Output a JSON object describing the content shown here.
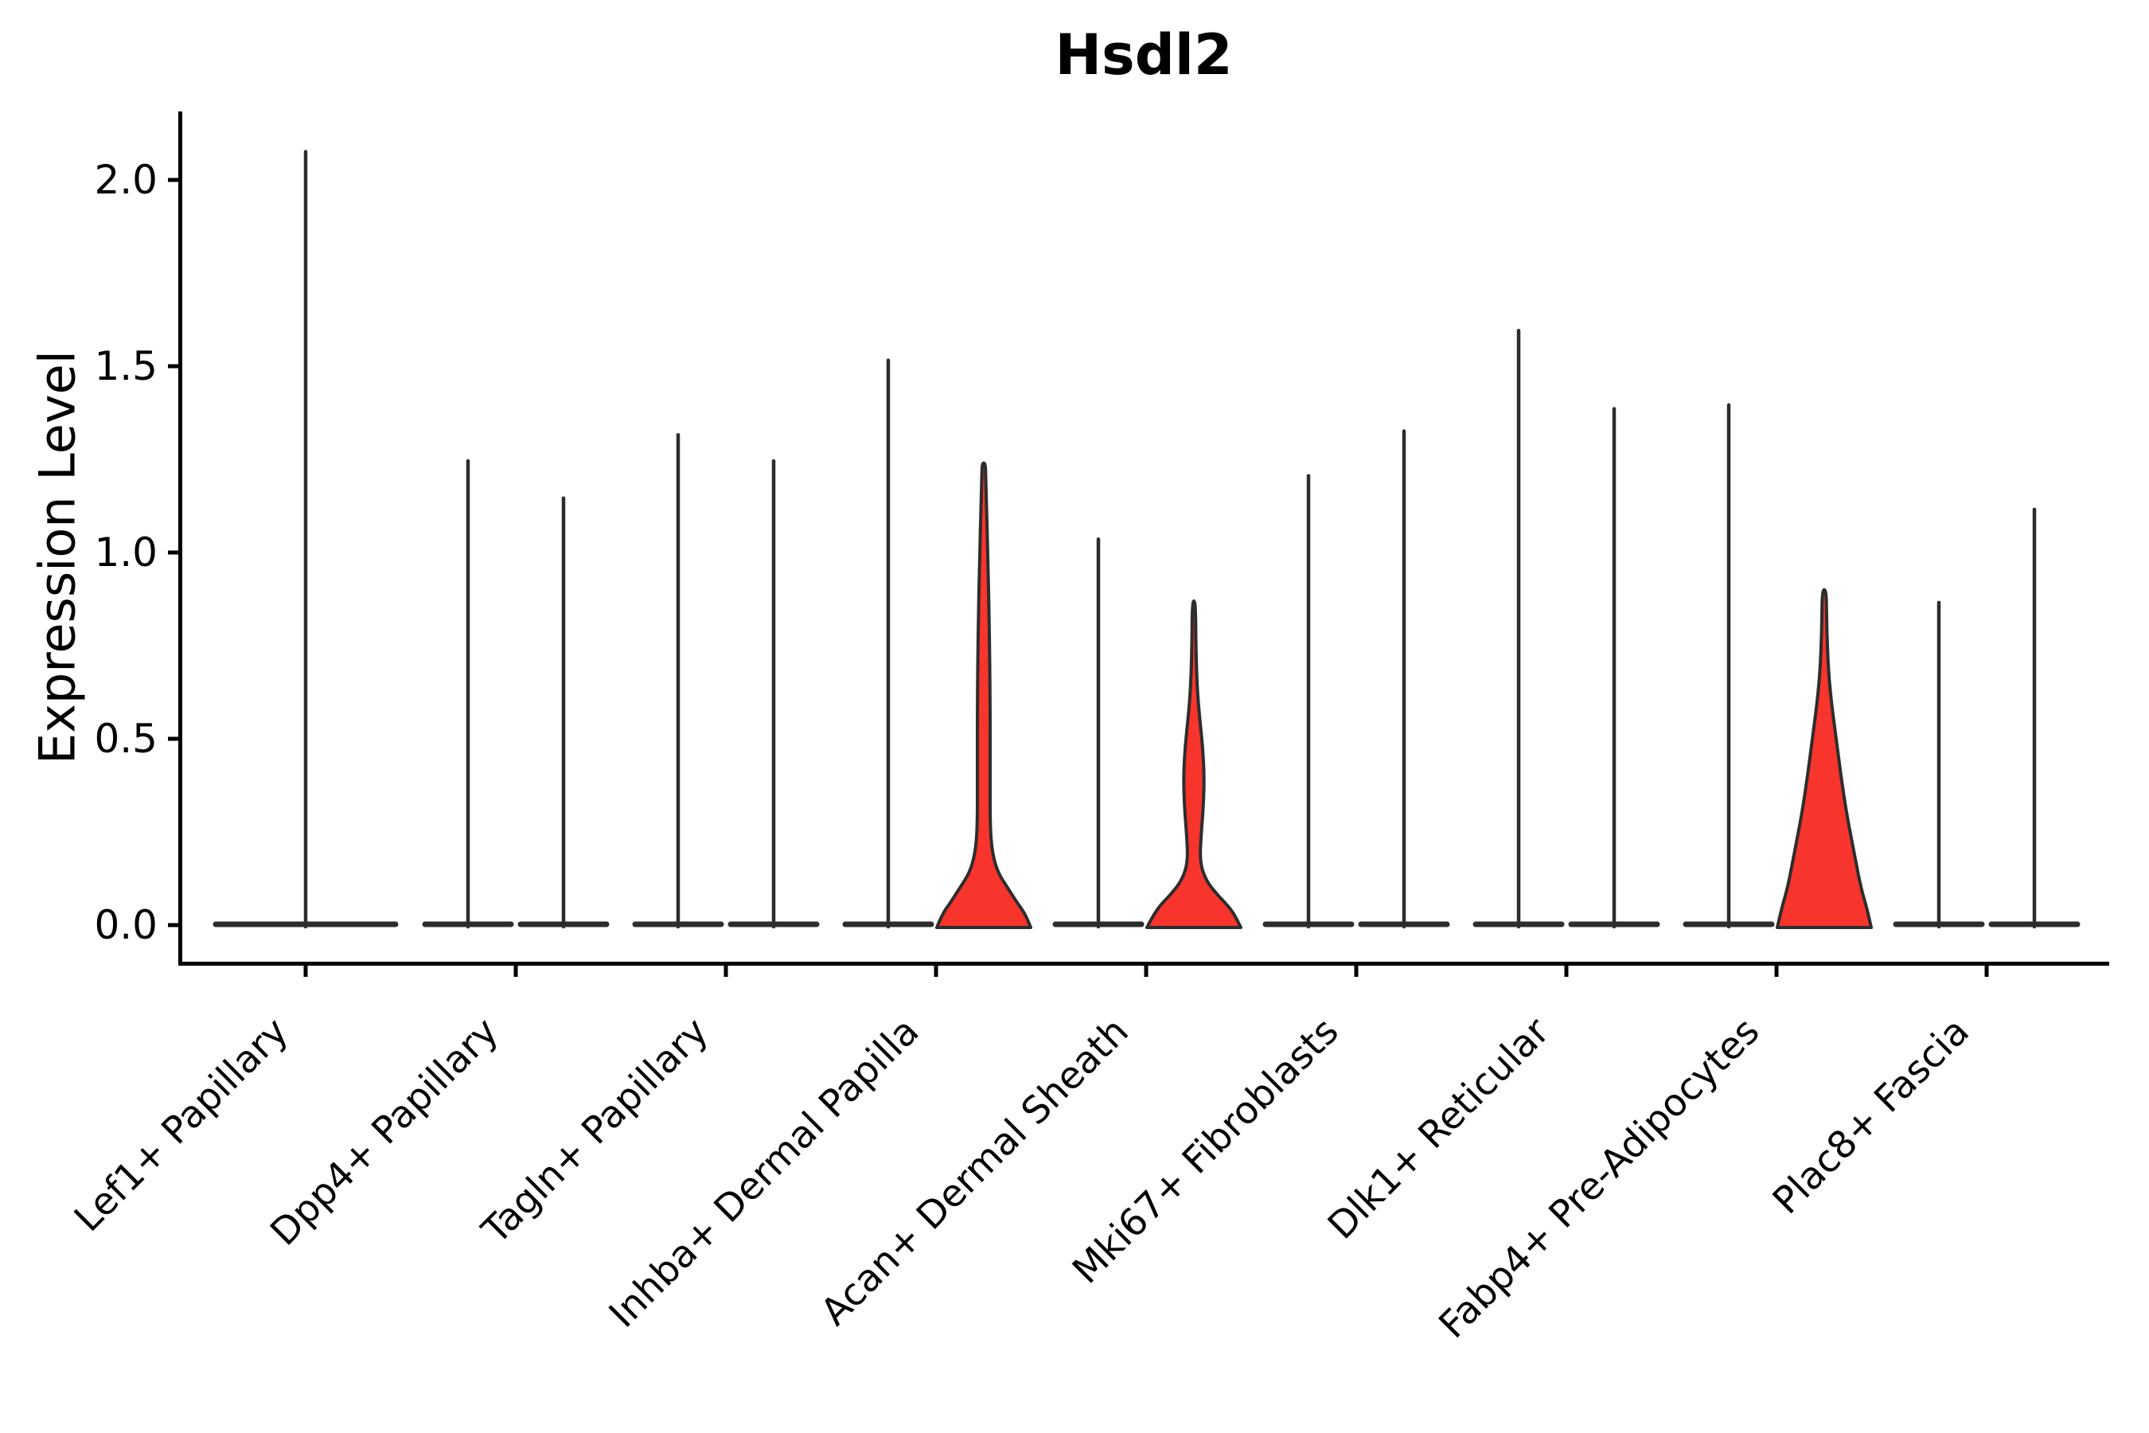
{
  "title": "Hsdl2",
  "chart_data": {
    "type": "violin",
    "title": "Hsdl2",
    "xlabel": "",
    "ylabel": "Expression Level",
    "ylim": [
      -0.1,
      2.18
    ],
    "yticks": [
      "0.0",
      "0.5",
      "1.0",
      "1.5",
      "2.0"
    ],
    "ytick_values": [
      0.0,
      0.5,
      1.0,
      1.5,
      2.0
    ],
    "grid": false,
    "legend": null,
    "line_color": "#2d2d2d",
    "fill_color": "#f8352c",
    "categories": [
      "Lef1+ Papillary",
      "Dpp4+ Papillary",
      "Tagln+ Papillary",
      "Inhba+ Dermal Papilla",
      "Acan+ Dermal Sheath",
      "Mki67+ Fibroblasts",
      "Dlk1+ Reticular",
      "Fabp4+ Pre-Adipocytes",
      "Plac8+ Fascia"
    ],
    "violins": [
      {
        "category_index": 0,
        "category": "Lef1+ Papillary",
        "slot": "full",
        "max": 2.08,
        "filled": false
      },
      {
        "category_index": 1,
        "category": "Dpp4+ Papillary",
        "slot": "left",
        "max": 1.25,
        "filled": false
      },
      {
        "category_index": 1,
        "category": "Dpp4+ Papillary",
        "slot": "right",
        "max": 1.15,
        "filled": false
      },
      {
        "category_index": 2,
        "category": "Tagln+ Papillary",
        "slot": "left",
        "max": 1.32,
        "filled": false
      },
      {
        "category_index": 2,
        "category": "Tagln+ Papillary",
        "slot": "right",
        "max": 1.25,
        "filled": false
      },
      {
        "category_index": 3,
        "category": "Inhba+ Dermal Papilla",
        "slot": "left",
        "max": 1.52,
        "filled": false
      },
      {
        "category_index": 3,
        "category": "Inhba+ Dermal Papilla",
        "slot": "right",
        "max": 1.24,
        "filled": true,
        "profile": [
          [
            0,
            59
          ],
          [
            0.03,
            52
          ],
          [
            0.06,
            42
          ],
          [
            0.1,
            30
          ],
          [
            0.14,
            18
          ],
          [
            0.19,
            11
          ],
          [
            0.26,
            8
          ],
          [
            0.4,
            8
          ],
          [
            0.6,
            8
          ],
          [
            0.8,
            7
          ],
          [
            1.0,
            5
          ],
          [
            1.12,
            3.5
          ],
          [
            1.2,
            2.5
          ],
          [
            1.24,
            2
          ]
        ]
      },
      {
        "category_index": 4,
        "category": "Acan+ Dermal Sheath",
        "slot": "left",
        "max": 1.04,
        "filled": false
      },
      {
        "category_index": 4,
        "category": "Acan+ Dermal Sheath",
        "slot": "right",
        "max": 0.87,
        "filled": true,
        "profile": [
          [
            0,
            59
          ],
          [
            0.04,
            48
          ],
          [
            0.08,
            30
          ],
          [
            0.12,
            15
          ],
          [
            0.17,
            7.5
          ],
          [
            0.24,
            9
          ],
          [
            0.32,
            12
          ],
          [
            0.4,
            13
          ],
          [
            0.48,
            11
          ],
          [
            0.56,
            7
          ],
          [
            0.64,
            4
          ],
          [
            0.75,
            2.5
          ],
          [
            0.87,
            2
          ]
        ]
      },
      {
        "category_index": 5,
        "category": "Mki67+ Fibroblasts",
        "slot": "left",
        "max": 1.21,
        "filled": false
      },
      {
        "category_index": 5,
        "category": "Mki67+ Fibroblasts",
        "slot": "right",
        "max": 1.33,
        "filled": false
      },
      {
        "category_index": 6,
        "category": "Dlk1+ Reticular",
        "slot": "left",
        "max": 1.6,
        "filled": false
      },
      {
        "category_index": 6,
        "category": "Dlk1+ Reticular",
        "slot": "right",
        "max": 1.39,
        "filled": false
      },
      {
        "category_index": 7,
        "category": "Fabp4+ Pre-Adipocytes",
        "slot": "left",
        "max": 1.4,
        "filled": false
      },
      {
        "category_index": 7,
        "category": "Fabp4+ Pre-Adipocytes",
        "slot": "right",
        "max": 0.9,
        "filled": true,
        "profile": [
          [
            0,
            59
          ],
          [
            0.05,
            53
          ],
          [
            0.1,
            46
          ],
          [
            0.2,
            37
          ],
          [
            0.3,
            28
          ],
          [
            0.4,
            21
          ],
          [
            0.5,
            15
          ],
          [
            0.58,
            10
          ],
          [
            0.66,
            6
          ],
          [
            0.74,
            4
          ],
          [
            0.82,
            3
          ],
          [
            0.9,
            2.5
          ]
        ]
      },
      {
        "category_index": 8,
        "category": "Plac8+ Fascia",
        "slot": "left",
        "max": 0.87,
        "filled": false
      },
      {
        "category_index": 8,
        "category": "Plac8+ Fascia",
        "slot": "right",
        "max": 1.12,
        "filled": false
      }
    ]
  }
}
